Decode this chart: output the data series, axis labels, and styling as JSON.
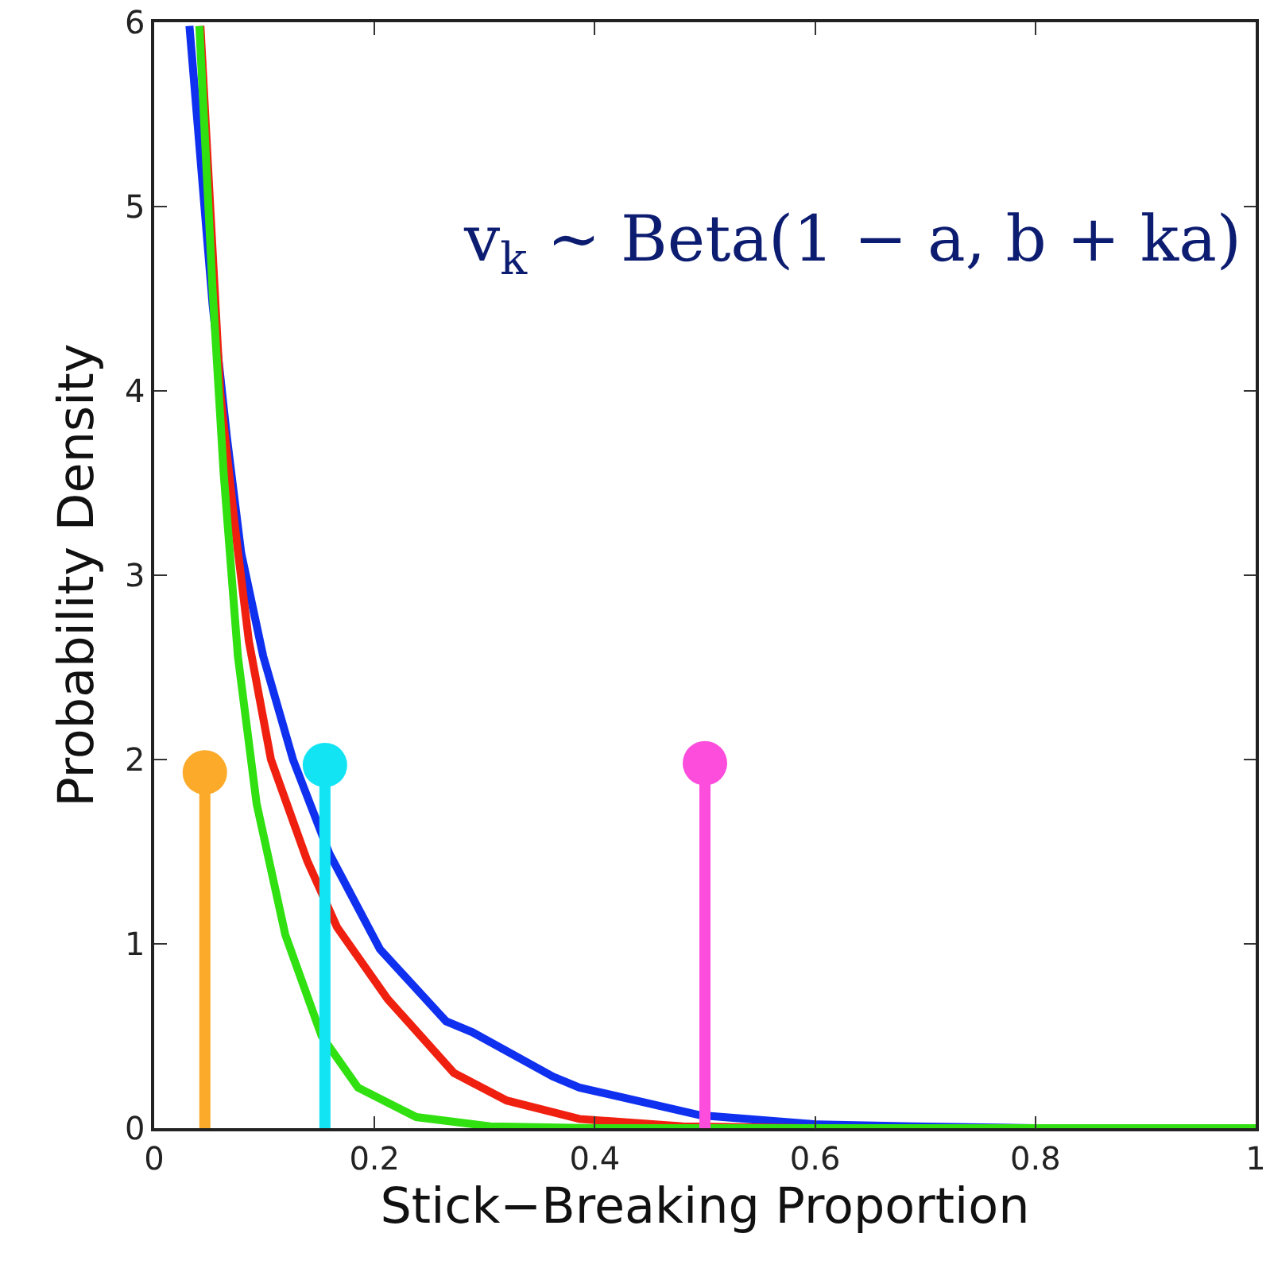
{
  "chart_data": {
    "type": "line",
    "xlabel": "Stick−Breaking Proportion",
    "ylabel": "Probability Density",
    "xlim": [
      0,
      1
    ],
    "ylim": [
      0,
      6
    ],
    "xticks": [
      0,
      0.2,
      0.4,
      0.6,
      0.8,
      1
    ],
    "yticks": [
      0,
      1,
      2,
      3,
      4,
      5,
      6
    ],
    "annotations": [
      "v$_{k}$ ∼ Beta(1 − a, b + ka)"
    ],
    "series": [
      {
        "color": "#1030f0",
        "x": [
          0.032,
          0.053,
          0.066,
          0.079,
          0.099,
          0.126,
          0.159,
          0.205,
          0.265,
          0.289,
          0.362,
          0.386,
          0.496,
          0.602,
          0.689,
          0.8,
          1
        ],
        "values": [
          5.98,
          4.47,
          3.75,
          3.12,
          2.56,
          2.0,
          1.49,
          0.97,
          0.58,
          0.52,
          0.28,
          0.22,
          0.07,
          0.02,
          0.01,
          0,
          0
        ]
      },
      {
        "color": "#f02010",
        "x": [
          0.042,
          0.06,
          0.073,
          0.086,
          0.106,
          0.139,
          0.166,
          0.212,
          0.272,
          0.32,
          0.386,
          0.48,
          0.6,
          1
        ],
        "values": [
          5.98,
          3.99,
          3.28,
          2.64,
          2.0,
          1.45,
          1.09,
          0.7,
          0.3,
          0.15,
          0.05,
          0.01,
          0,
          0
        ]
      },
      {
        "color": "#30e010",
        "x": [
          0.041,
          0.053,
          0.063,
          0.076,
          0.093,
          0.119,
          0.152,
          0.185,
          0.238,
          0.305,
          0.4,
          1
        ],
        "values": [
          5.98,
          4.55,
          3.56,
          2.56,
          1.76,
          1.05,
          0.5,
          0.22,
          0.06,
          0.01,
          0,
          0
        ]
      },
      {
        "type": "lollipop",
        "x": [
          0.046,
          0.155,
          0.5
        ],
        "values": [
          1.93,
          1.97,
          1.98
        ],
        "colors": [
          "#fbaa2a",
          "#12e4f4",
          "#fc4ddc"
        ]
      }
    ]
  }
}
